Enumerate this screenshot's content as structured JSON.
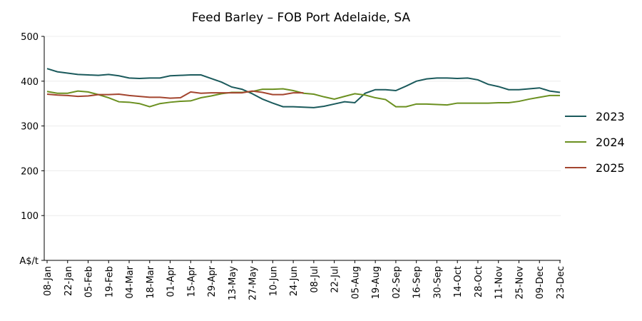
{
  "chart_data": {
    "type": "line",
    "title": "Feed Barley – FOB Port Adelaide, SA",
    "categories": [
      "08-Jan",
      null,
      "22-Jan",
      null,
      "05-Feb",
      null,
      "19-Feb",
      null,
      "04-Mar",
      null,
      "18-Mar",
      null,
      "01-Apr",
      null,
      "15-Apr",
      null,
      "29-Apr",
      null,
      "13-May",
      null,
      "27-May",
      null,
      "10-Jun",
      null,
      "24-Jun",
      null,
      "08-Jul",
      null,
      "22-Jul",
      null,
      "05-Aug",
      null,
      "19-Aug",
      null,
      "02-Sep",
      null,
      "16-Sep",
      null,
      "30-Sep",
      null,
      "14-Oct",
      null,
      "28-Oct",
      null,
      "11-Nov",
      null,
      "25-Nov",
      null,
      "09-Dec",
      null,
      "23-Dec"
    ],
    "series": [
      {
        "name": "2023",
        "color": "#1b5a5c",
        "values": [
          428,
          421,
          418,
          415,
          414,
          413,
          415,
          412,
          407,
          406,
          407,
          407,
          412,
          413,
          414,
          414,
          406,
          398,
          387,
          382,
          372,
          360,
          351,
          343,
          343,
          342,
          341,
          344,
          349,
          354,
          352,
          373,
          381,
          381,
          379,
          389,
          400,
          405,
          407,
          407,
          406,
          407,
          403,
          393,
          388,
          381,
          381,
          383,
          385,
          378,
          375
        ]
      },
      {
        "name": "2024",
        "color": "#6b9020",
        "values": [
          377,
          373,
          373,
          378,
          376,
          370,
          363,
          354,
          353,
          350,
          343,
          350,
          353,
          355,
          356,
          363,
          367,
          372,
          375,
          375,
          377,
          382,
          382,
          383,
          379,
          373,
          371,
          365,
          360,
          366,
          372,
          369,
          363,
          359,
          343,
          343,
          349,
          349,
          348,
          347,
          351,
          351,
          351,
          351,
          352,
          352,
          355,
          360,
          364,
          368,
          368
        ]
      },
      {
        "name": "2025",
        "color": "#a3452f",
        "values": [
          371,
          369,
          368,
          366,
          367,
          370,
          370,
          371,
          368,
          366,
          364,
          364,
          362,
          363,
          376,
          373,
          374,
          374,
          374,
          374,
          378,
          375,
          370,
          370,
          374,
          374,
          null,
          null,
          null,
          null,
          null,
          null,
          null,
          null,
          null,
          null,
          null,
          null,
          null,
          null,
          null,
          null,
          null,
          null,
          null,
          null,
          null,
          null,
          null,
          null,
          null
        ]
      }
    ],
    "ylim": [
      0,
      500
    ],
    "yticks": [
      {
        "value": 0,
        "label": "A$/t"
      },
      100,
      200,
      300,
      400,
      500
    ],
    "grid": true,
    "legend": "right"
  }
}
